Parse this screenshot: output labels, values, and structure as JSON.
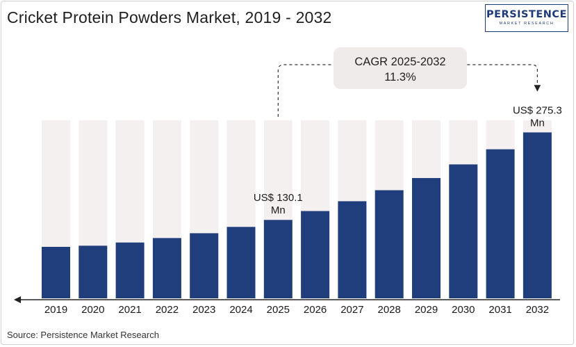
{
  "header": {
    "title": "Cricket Protein Powders Market, 2019 - 2032",
    "logo_main": "PERSISTENCE",
    "logo_sub": "MARKET RESEARCH"
  },
  "footer": {
    "source": "Source: Persistence Market Research"
  },
  "chart_data": {
    "type": "bar",
    "title": "Cricket Protein Powders Market, 2019 - 2032",
    "xlabel": "",
    "ylabel": "",
    "categories": [
      "2019",
      "2020",
      "2021",
      "2022",
      "2023",
      "2024",
      "2025",
      "2026",
      "2027",
      "2028",
      "2029",
      "2030",
      "2031",
      "2032"
    ],
    "series": [
      {
        "values": [
          85.4,
          87.3,
          92.6,
          100.0,
          108.0,
          118.5,
          130.1,
          144.8,
          161.1,
          179.4,
          199.6,
          222.2,
          247.3,
          275.3
        ]
      }
    ],
    "ylim": [
      0,
      330
    ],
    "grid": false,
    "colors": {
      "bar": "#213e7c",
      "background_bar": "#f3f0ef"
    },
    "annotations": [
      {
        "category": "2025",
        "label_line1": "US$ 130.1",
        "label_line2": "Mn"
      },
      {
        "category": "2032",
        "label_line1": "US$ 275.3",
        "label_line2": "Mn"
      }
    ],
    "cagr": {
      "label_line1": "CAGR 2025-2032",
      "label_line2": "11.3%",
      "from": "2025",
      "to": "2032"
    }
  }
}
